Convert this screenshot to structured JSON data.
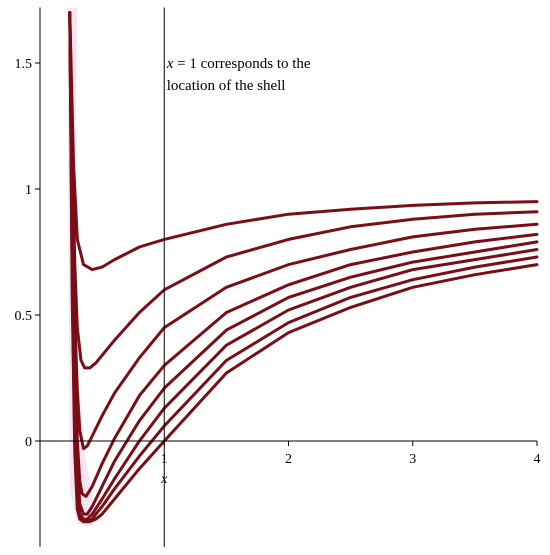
{
  "chart_data": {
    "type": "line",
    "title": "",
    "xlabel": "x",
    "ylabel": "",
    "xlim": [
      -0.02,
      4.0
    ],
    "ylim": [
      -0.42,
      1.72
    ],
    "x_ticks": [
      {
        "value": 1,
        "label": "1"
      },
      {
        "value": 2,
        "label": "2"
      },
      {
        "value": 3,
        "label": "3"
      },
      {
        "value": 4,
        "label": "4"
      }
    ],
    "y_ticks": [
      {
        "value": 0,
        "label": "0"
      },
      {
        "value": 0.5,
        "label": "0.5"
      },
      {
        "value": 1,
        "label": "1"
      },
      {
        "value": 1.5,
        "label": "1.5"
      }
    ],
    "grid": false,
    "line_color": "#7a0d15",
    "shading_color": "#f6dcf0",
    "vertical_line": {
      "x": 1
    },
    "annotation": {
      "var": "x",
      "rest_line1": " = 1 corresponds to the",
      "line2": "location of the shell",
      "x": 1.02,
      "y": 1.48
    },
    "series": [
      {
        "x": [
          0.24,
          0.27,
          0.3,
          0.35,
          0.42,
          0.5,
          0.6,
          0.8,
          1.0,
          1.5,
          2.0,
          2.5,
          3.0,
          3.5,
          4.0
        ],
        "y": [
          1.7,
          1.1,
          0.8,
          0.7,
          0.68,
          0.69,
          0.72,
          0.77,
          0.8,
          0.86,
          0.9,
          0.92,
          0.935,
          0.945,
          0.95
        ]
      },
      {
        "x": [
          0.24,
          0.26,
          0.28,
          0.3,
          0.33,
          0.36,
          0.4,
          0.45,
          0.5,
          0.6,
          0.8,
          1.0,
          1.5,
          2.0,
          2.5,
          3.0,
          3.5,
          4.0
        ],
        "y": [
          1.7,
          1.15,
          0.7,
          0.45,
          0.32,
          0.29,
          0.29,
          0.31,
          0.34,
          0.4,
          0.51,
          0.6,
          0.73,
          0.8,
          0.85,
          0.88,
          0.9,
          0.91
        ]
      },
      {
        "x": [
          0.24,
          0.26,
          0.28,
          0.3,
          0.32,
          0.35,
          0.38,
          0.42,
          0.5,
          0.6,
          0.8,
          1.0,
          1.5,
          2.0,
          2.5,
          3.0,
          3.5,
          4.0
        ],
        "y": [
          1.7,
          1.0,
          0.5,
          0.2,
          0.04,
          -0.03,
          -0.02,
          0.02,
          0.1,
          0.19,
          0.33,
          0.45,
          0.61,
          0.7,
          0.76,
          0.81,
          0.84,
          0.86
        ]
      },
      {
        "x": [
          0.24,
          0.26,
          0.28,
          0.3,
          0.32,
          0.34,
          0.37,
          0.42,
          0.5,
          0.6,
          0.8,
          1.0,
          1.5,
          2.0,
          2.5,
          3.0,
          3.5,
          4.0
        ],
        "y": [
          1.7,
          0.9,
          0.35,
          0.0,
          -0.16,
          -0.21,
          -0.22,
          -0.18,
          -0.09,
          0.01,
          0.18,
          0.3,
          0.51,
          0.62,
          0.7,
          0.75,
          0.79,
          0.82
        ]
      },
      {
        "x": [
          0.24,
          0.26,
          0.28,
          0.3,
          0.32,
          0.35,
          0.38,
          0.42,
          0.5,
          0.6,
          0.8,
          1.0,
          1.5,
          2.0,
          2.5,
          3.0,
          3.5,
          4.0
        ],
        "y": [
          1.7,
          0.8,
          0.2,
          -0.1,
          -0.25,
          -0.29,
          -0.29,
          -0.26,
          -0.18,
          -0.08,
          0.08,
          0.21,
          0.44,
          0.57,
          0.65,
          0.71,
          0.75,
          0.79
        ]
      },
      {
        "x": [
          0.24,
          0.26,
          0.28,
          0.3,
          0.32,
          0.35,
          0.38,
          0.42,
          0.5,
          0.6,
          0.8,
          1.0,
          1.5,
          2.0,
          2.5,
          3.0,
          3.5,
          4.0
        ],
        "y": [
          1.7,
          0.7,
          0.1,
          -0.2,
          -0.29,
          -0.31,
          -0.31,
          -0.29,
          -0.23,
          -0.15,
          0.0,
          0.13,
          0.38,
          0.52,
          0.61,
          0.68,
          0.72,
          0.76
        ]
      },
      {
        "x": [
          0.24,
          0.26,
          0.28,
          0.3,
          0.32,
          0.35,
          0.38,
          0.42,
          0.45,
          0.5,
          0.6,
          0.8,
          1.0,
          1.5,
          2.0,
          2.5,
          3.0,
          3.5,
          4.0
        ],
        "y": [
          1.7,
          0.6,
          0.0,
          -0.24,
          -0.3,
          -0.32,
          -0.32,
          -0.31,
          -0.29,
          -0.26,
          -0.19,
          -0.06,
          0.06,
          0.32,
          0.47,
          0.57,
          0.64,
          0.69,
          0.73
        ]
      },
      {
        "x": [
          0.24,
          0.26,
          0.28,
          0.3,
          0.32,
          0.35,
          0.4,
          0.45,
          0.5,
          0.6,
          0.8,
          1.0,
          1.5,
          2.0,
          2.5,
          3.0,
          3.5,
          4.0
        ],
        "y": [
          1.7,
          0.55,
          -0.05,
          -0.27,
          -0.31,
          -0.32,
          -0.32,
          -0.31,
          -0.29,
          -0.23,
          -0.11,
          0.0,
          0.27,
          0.43,
          0.53,
          0.61,
          0.66,
          0.7
        ]
      }
    ]
  }
}
